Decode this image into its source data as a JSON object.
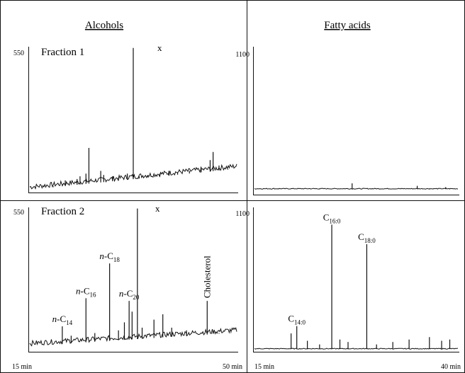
{
  "headers": {
    "left": "Alcohols",
    "right": "Fatty acids"
  },
  "panels": {
    "f1_alc": {
      "name": "Fraction 1",
      "ymax": "550",
      "marker": "x"
    },
    "f1_fa": {
      "ymax": "1100"
    },
    "f2_alc": {
      "name": "Fraction 2",
      "ymax": "550",
      "marker": "x",
      "x_start": "15 min",
      "x_end": "50 min"
    },
    "f2_fa": {
      "ymax": "1100",
      "x_start": "15 min",
      "x_end": "40 min"
    }
  },
  "chart_data": [
    {
      "type": "line",
      "title": "Fraction 1 — Alcohols",
      "ylim": [
        0,
        550
      ],
      "xlim": [
        15,
        50
      ],
      "peaks": [
        {
          "x": 19.0,
          "y": 20
        },
        {
          "x": 20.5,
          "y": 30
        },
        {
          "x": 21.0,
          "y": 45
        },
        {
          "x": 23.0,
          "y": 50
        },
        {
          "x": 23.5,
          "y": 60
        },
        {
          "x": 24.5,
          "y": 70
        },
        {
          "x": 25.0,
          "y": 165
        },
        {
          "x": 27.0,
          "y": 80
        },
        {
          "x": 27.5,
          "y": 65
        },
        {
          "x": 29.0,
          "y": 60
        },
        {
          "x": 30.0,
          "y": 55
        },
        {
          "x": 31.5,
          "y": 70
        },
        {
          "x": 32.5,
          "y": 535
        },
        {
          "x": 33.5,
          "y": 60
        },
        {
          "x": 35.0,
          "y": 65
        },
        {
          "x": 37.0,
          "y": 70
        },
        {
          "x": 38.5,
          "y": 80
        },
        {
          "x": 40.0,
          "y": 75
        },
        {
          "x": 42.0,
          "y": 80
        },
        {
          "x": 44.0,
          "y": 85
        },
        {
          "x": 45.5,
          "y": 120
        },
        {
          "x": 46.0,
          "y": 150
        },
        {
          "x": 47.0,
          "y": 100
        },
        {
          "x": 48.5,
          "y": 80
        }
      ]
    },
    {
      "type": "line",
      "title": "Fraction 1 — Fatty acids",
      "ylim": [
        0,
        1100
      ],
      "xlim": [
        15,
        40
      ],
      "peaks": [
        {
          "x": 18.0,
          "y": 20
        },
        {
          "x": 23.0,
          "y": 40
        },
        {
          "x": 27.0,
          "y": 90
        },
        {
          "x": 29.5,
          "y": 20
        },
        {
          "x": 33.0,
          "y": 30
        },
        {
          "x": 35.0,
          "y": 70
        },
        {
          "x": 36.5,
          "y": 45
        },
        {
          "x": 38.5,
          "y": 60
        }
      ]
    },
    {
      "type": "line",
      "title": "Fraction 2 — Alcohols",
      "ylim": [
        0,
        550
      ],
      "xlim": [
        15,
        50
      ],
      "peaks": [
        {
          "label": "n-C14",
          "x": 20.5,
          "y": 95
        },
        {
          "x": 22.0,
          "y": 60
        },
        {
          "label": "n-C16",
          "x": 24.5,
          "y": 200
        },
        {
          "x": 26.0,
          "y": 70
        },
        {
          "label": "n-C18",
          "x": 28.5,
          "y": 330
        },
        {
          "x": 30.0,
          "y": 80
        },
        {
          "x": 31.0,
          "y": 110
        },
        {
          "label": "n-C20",
          "x": 31.8,
          "y": 190
        },
        {
          "x": 32.3,
          "y": 150
        },
        {
          "x": 33.2,
          "y": 535
        },
        {
          "x": 34.0,
          "y": 90
        },
        {
          "x": 36.0,
          "y": 120
        },
        {
          "x": 37.5,
          "y": 140
        },
        {
          "x": 39.0,
          "y": 90
        },
        {
          "x": 41.5,
          "y": 80
        },
        {
          "label": "Cholesterol",
          "x": 45.0,
          "y": 190
        },
        {
          "x": 47.0,
          "y": 70
        },
        {
          "x": 49.0,
          "y": 60
        }
      ]
    },
    {
      "type": "line",
      "title": "Fraction 2 — Fatty acids",
      "ylim": [
        0,
        1100
      ],
      "xlim": [
        15,
        40
      ],
      "peaks": [
        {
          "x": 19.5,
          "y": 150
        },
        {
          "label": "C14:0",
          "x": 20.2,
          "y": 210
        },
        {
          "x": 21.5,
          "y": 90
        },
        {
          "x": 23.0,
          "y": 60
        },
        {
          "label": "C16:0",
          "x": 24.5,
          "y": 1040
        },
        {
          "x": 25.5,
          "y": 100
        },
        {
          "x": 26.5,
          "y": 80
        },
        {
          "label": "C18:0",
          "x": 28.8,
          "y": 880
        },
        {
          "x": 30.0,
          "y": 60
        },
        {
          "x": 32.0,
          "y": 80
        },
        {
          "x": 34.0,
          "y": 100
        },
        {
          "x": 36.5,
          "y": 120
        },
        {
          "x": 38.0,
          "y": 90
        },
        {
          "x": 39.0,
          "y": 100
        }
      ]
    }
  ]
}
